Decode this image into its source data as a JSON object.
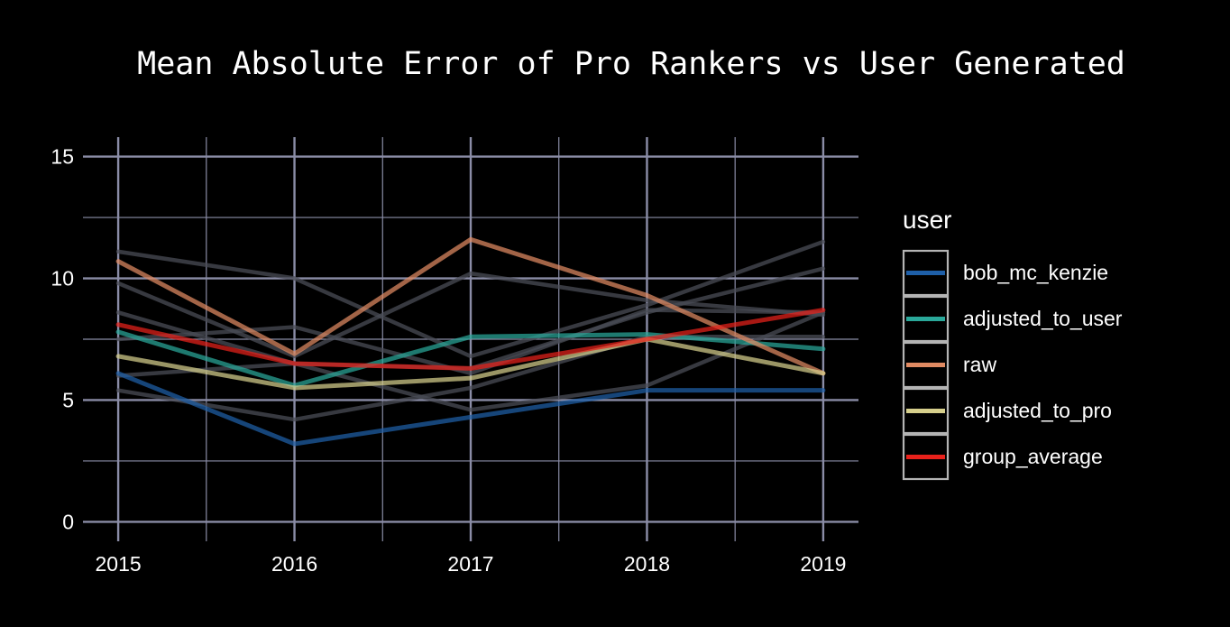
{
  "chart_data": {
    "type": "line",
    "title": "Mean Absolute Error of Pro Rankers vs User Generated",
    "xlabel": "",
    "ylabel": "",
    "x": [
      2015,
      2016,
      2017,
      2018,
      2019
    ],
    "xlim": [
      2014.8,
      2019.2
    ],
    "ylim": [
      -0.8,
      15.8
    ],
    "yticks": [
      0,
      5,
      10,
      15
    ],
    "grid": true,
    "legend": {
      "title": "user",
      "position": "right"
    },
    "background_series": [
      {
        "values": [
          11.1,
          10.0,
          6.8,
          8.9,
          11.5
        ]
      },
      {
        "values": [
          9.8,
          6.8,
          10.2,
          9.1,
          8.5
        ]
      },
      {
        "values": [
          8.6,
          6.5,
          6.3,
          8.6,
          10.4
        ]
      },
      {
        "values": [
          7.5,
          8.0,
          6.1,
          8.7,
          8.6
        ]
      },
      {
        "values": [
          5.4,
          4.2,
          5.5,
          7.6,
          7.6
        ]
      },
      {
        "values": [
          6.0,
          6.5,
          4.6,
          5.6,
          8.6
        ]
      }
    ],
    "series": [
      {
        "name": "bob_mc_kenzie",
        "color": "#1e5fa8",
        "values": [
          6.1,
          3.2,
          4.3,
          5.4,
          5.4
        ]
      },
      {
        "name": "adjusted_to_user",
        "color": "#2aa89a",
        "values": [
          7.8,
          5.6,
          7.6,
          7.7,
          7.1
        ]
      },
      {
        "name": "raw",
        "color": "#e08a62",
        "values": [
          10.7,
          6.9,
          11.6,
          9.3,
          6.1
        ]
      },
      {
        "name": "adjusted_to_pro",
        "color": "#d6cf8c",
        "values": [
          6.8,
          5.5,
          5.9,
          7.5,
          6.1
        ]
      },
      {
        "name": "group_average",
        "color": "#e8211b",
        "values": [
          8.1,
          6.5,
          6.3,
          7.5,
          8.7
        ]
      }
    ]
  }
}
